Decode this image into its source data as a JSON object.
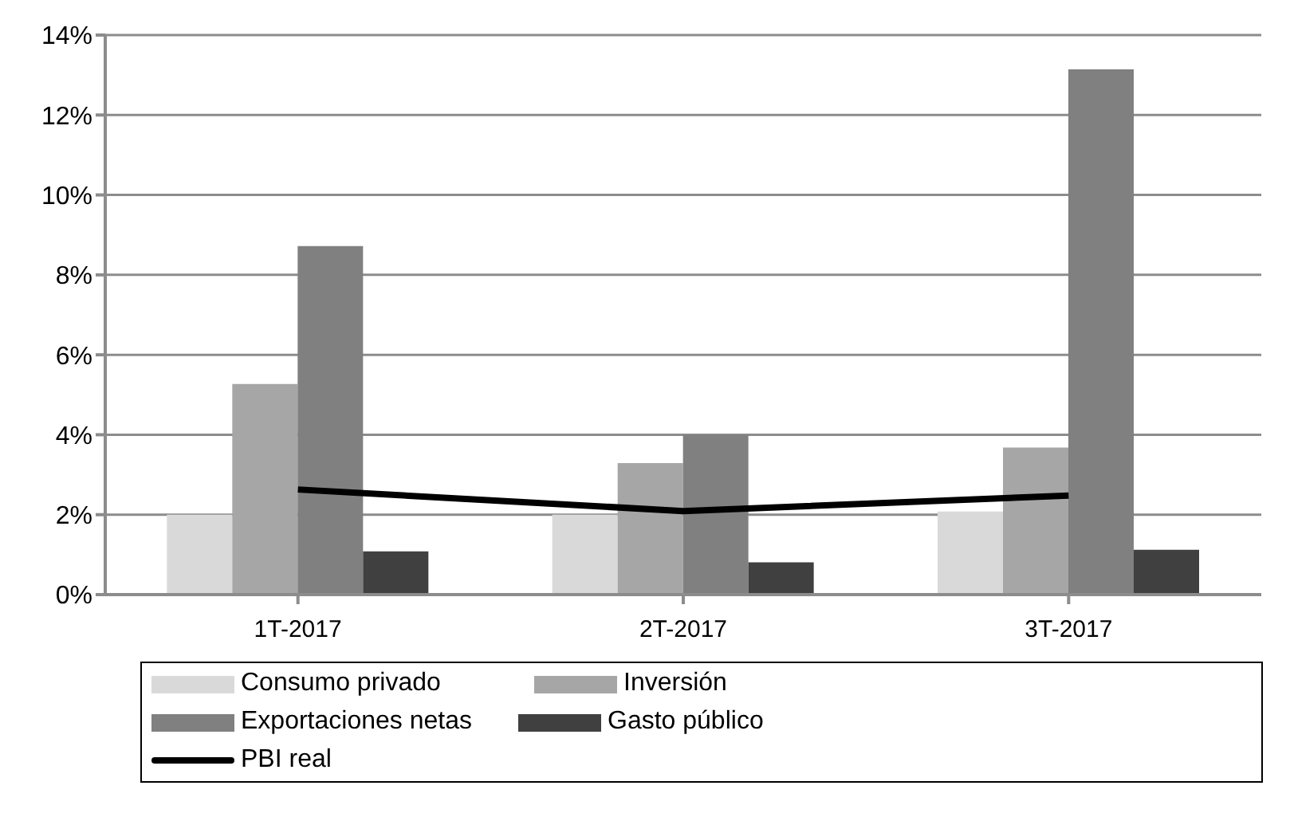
{
  "chart_data": {
    "type": "bar",
    "categories": [
      "1T-2017",
      "2T-2017",
      "3T-2017"
    ],
    "series": [
      {
        "name": "Consumo privado",
        "color": "#d9d9d9",
        "values": [
          2.0,
          2.0,
          2.08
        ]
      },
      {
        "name": "Inversión",
        "color": "#a6a6a6",
        "values": [
          5.27,
          3.29,
          3.68
        ]
      },
      {
        "name": "Exportaciones netas",
        "color": "#808080",
        "values": [
          8.72,
          4.0,
          13.14
        ]
      },
      {
        "name": "Gasto público",
        "color": "#404040",
        "values": [
          1.08,
          0.81,
          1.12
        ]
      },
      {
        "name": "PBI real",
        "color": "#000000",
        "type": "line",
        "values": [
          2.63,
          2.09,
          2.48
        ]
      }
    ],
    "ylim": [
      0,
      14
    ],
    "yticks": [
      {
        "value": 0,
        "label": "0%"
      },
      {
        "value": 2,
        "label": "2%"
      },
      {
        "value": 4,
        "label": "4%"
      },
      {
        "value": 6,
        "label": "6%"
      },
      {
        "value": 8,
        "label": "8%"
      },
      {
        "value": 10,
        "label": "10%"
      },
      {
        "value": 12,
        "label": "12%"
      },
      {
        "value": 14,
        "label": "14%"
      }
    ],
    "grid": "y",
    "legend": "bottom",
    "marker": "none"
  }
}
